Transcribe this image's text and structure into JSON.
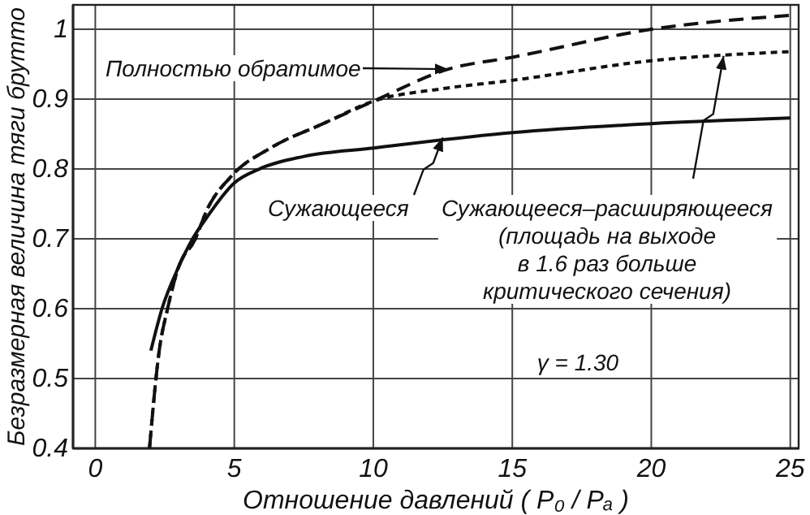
{
  "chart_data": {
    "type": "line",
    "xlabel": "Отношение давлений ( P₀ / Pₐ )",
    "ylabel": "Безразмерная величина тяги брутто",
    "xlim": [
      -0.8,
      25.3
    ],
    "ylim": [
      0.4,
      1.035
    ],
    "xticks": [
      0,
      5,
      10,
      15,
      20,
      25
    ],
    "yticks": [
      0.4,
      0.5,
      0.6,
      0.7,
      0.8,
      0.9,
      1.0
    ],
    "grid": true,
    "marker": "none",
    "series": [
      {
        "color": "#111111",
        "line_style": "solid",
        "x": [
          2,
          2.4,
          3,
          3.5,
          4,
          5,
          5.9,
          7.5,
          10,
          15,
          20,
          25
        ],
        "values": [
          0.54,
          0.6,
          0.66,
          0.7,
          0.73,
          0.78,
          0.8,
          0.818,
          0.83,
          0.852,
          0.865,
          0.873
        ]
      },
      {
        "color": "#111111",
        "line_style": "dashed",
        "x": [
          1.95,
          2.3,
          2.6,
          3,
          3.6,
          4,
          4.9,
          6.3,
          8.2,
          10,
          12.7,
          15,
          20,
          25
        ],
        "values": [
          0.4,
          0.54,
          0.6,
          0.66,
          0.7,
          0.74,
          0.79,
          0.83,
          0.865,
          0.897,
          0.943,
          0.96,
          1.0,
          1.02
        ]
      },
      {
        "color": "#111111",
        "line_style": "dotted",
        "x": [
          1.95,
          2.3,
          2.6,
          3,
          3.6,
          4,
          4.9,
          6.3,
          8.2,
          10,
          12.5,
          15,
          20,
          25
        ],
        "values": [
          0.4,
          0.54,
          0.6,
          0.66,
          0.7,
          0.74,
          0.79,
          0.83,
          0.865,
          0.897,
          0.915,
          0.927,
          0.955,
          0.968
        ]
      }
    ],
    "annotations": [
      "Полностью обратимое",
      {
        "text": "Сужающееся",
        "x": 12.5,
        "y": 0.845
      },
      {
        "text": "Сужающееся–расширяющееся\n(площадь на выходе\nв 1.6 раз больше\nкритического сечения)",
        "x": 22.6,
        "y": 0.962
      },
      "γ = 1.30"
    ]
  }
}
